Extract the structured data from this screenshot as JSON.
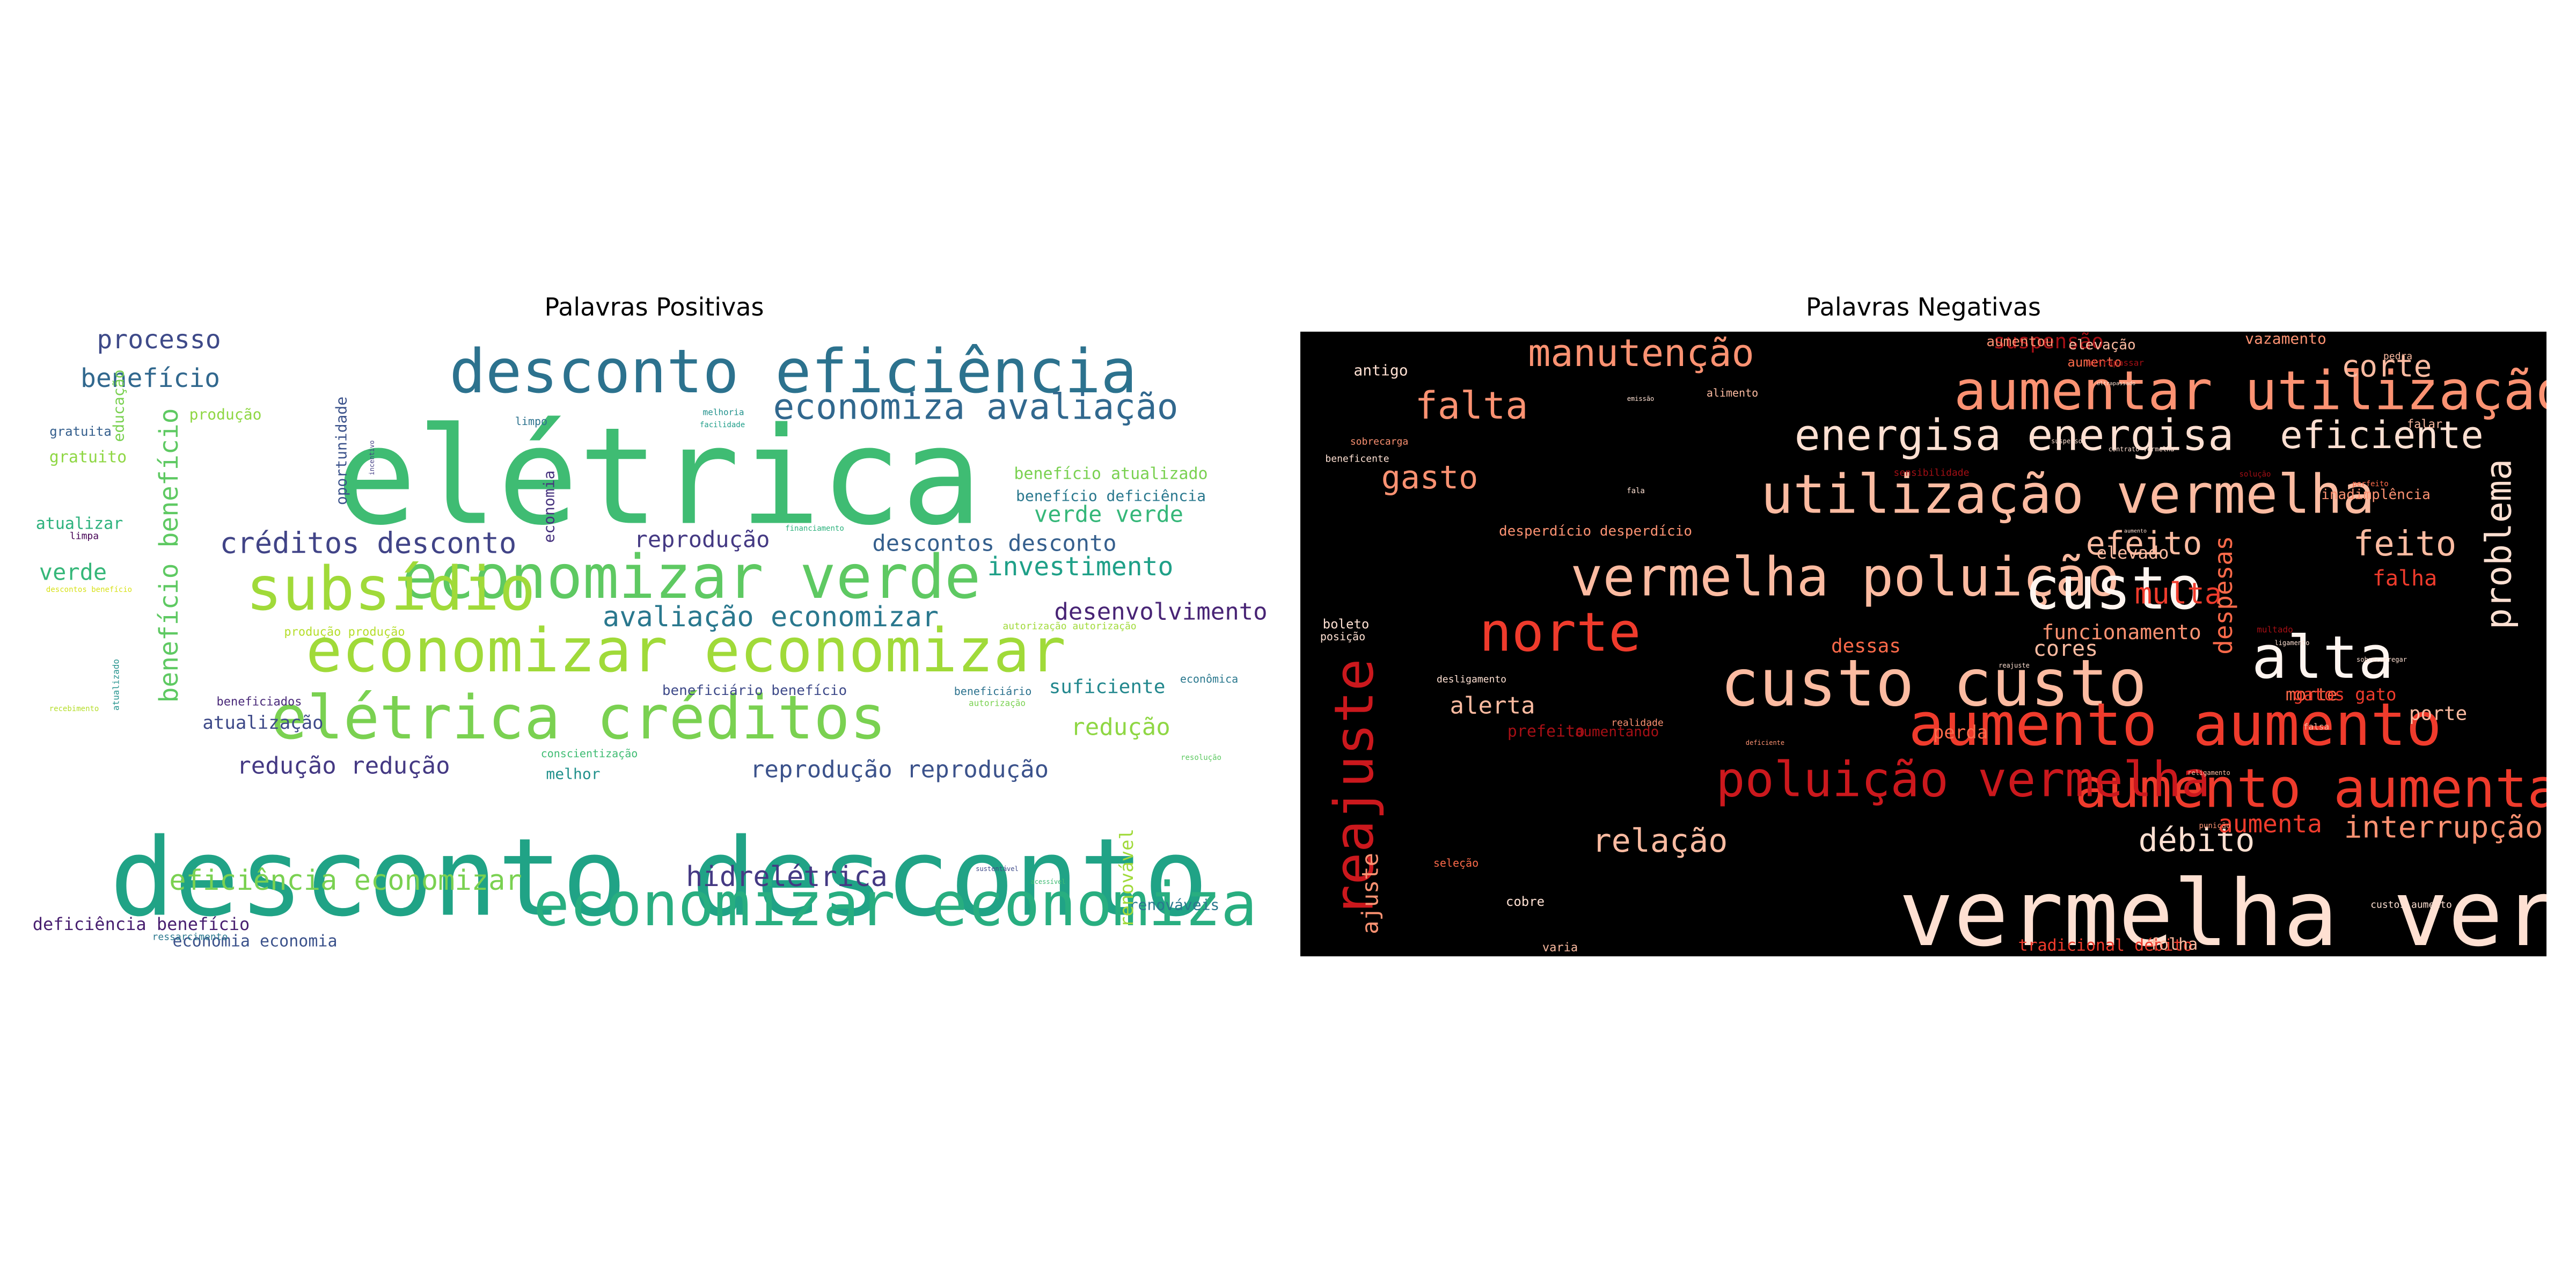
{
  "panels": [
    {
      "title": "Palavras Positivas",
      "background": "#ffffff",
      "words": [
        {
          "text": "elétrica",
          "color": "#3fbc73"
        },
        {
          "text": "desconto desconto",
          "color": "#20a386"
        },
        {
          "text": "desconto eficiência",
          "color": "#2c728e"
        },
        {
          "text": "economizar verde",
          "color": "#5ec962"
        },
        {
          "text": "subsídio",
          "color": "#a0da39"
        },
        {
          "text": "economizar economizar",
          "color": "#a0da39"
        },
        {
          "text": "elétrica créditos",
          "color": "#7ad151"
        },
        {
          "text": "economizar economiza",
          "color": "#28ae80"
        },
        {
          "text": "economiza avaliação",
          "color": "#31688e"
        },
        {
          "text": "processo",
          "color": "#3e4a89"
        },
        {
          "text": "benefício",
          "color": "#31688e"
        },
        {
          "text": "benefício benefício",
          "color": "#5ec962"
        },
        {
          "text": "créditos desconto",
          "color": "#414487"
        },
        {
          "text": "reprodução",
          "color": "#443983"
        },
        {
          "text": "avaliação economizar",
          "color": "#2a788e"
        },
        {
          "text": "desenvolvimento",
          "color": "#482475"
        },
        {
          "text": "investimento",
          "color": "#1fa088"
        },
        {
          "text": "descontos desconto",
          "color": "#355f8d"
        },
        {
          "text": "verde verde",
          "color": "#35b779"
        },
        {
          "text": "benefício atualizado",
          "color": "#7ad151"
        },
        {
          "text": "benefício deficiência",
          "color": "#2a788e"
        },
        {
          "text": "redução redução",
          "color": "#443983"
        },
        {
          "text": "reprodução reprodução",
          "color": "#3b528b"
        },
        {
          "text": "redução",
          "color": "#8fd744"
        },
        {
          "text": "atualização",
          "color": "#3e4a89"
        },
        {
          "text": "suficiente",
          "color": "#23888e"
        },
        {
          "text": "hidrelétrica",
          "color": "#443983"
        },
        {
          "text": "eficiência economizar",
          "color": "#7ad151"
        },
        {
          "text": "deficiência benefício",
          "color": "#481f70"
        },
        {
          "text": "economia economia",
          "color": "#3b528b"
        },
        {
          "text": "renováveis",
          "color": "#2a788e"
        },
        {
          "text": "renovável",
          "color": "#a0da39"
        },
        {
          "text": "produção",
          "color": "#8fd744"
        },
        {
          "text": "gratuita",
          "color": "#355f8d"
        },
        {
          "text": "gratuito",
          "color": "#8fd744"
        },
        {
          "text": "atualizar",
          "color": "#2db27d"
        },
        {
          "text": "verde",
          "color": "#35b779"
        },
        {
          "text": "limpa",
          "color": "#440154"
        },
        {
          "text": "educação",
          "color": "#7ad151"
        },
        {
          "text": "oportunidade",
          "color": "#3b528b"
        },
        {
          "text": "economia",
          "color": "#46327e"
        },
        {
          "text": "melhoria",
          "color": "#21918c"
        },
        {
          "text": "facilidade",
          "color": "#1f9e89"
        },
        {
          "text": "limpo",
          "color": "#2c728e"
        },
        {
          "text": "produção produção",
          "color": "#b5de2b"
        },
        {
          "text": "autorização autorização",
          "color": "#a0da39"
        },
        {
          "text": "beneficiário benefício",
          "color": "#3e4a89"
        },
        {
          "text": "beneficiário",
          "color": "#2c728e"
        },
        {
          "text": "econômica",
          "color": "#2a788e"
        },
        {
          "text": "beneficiados",
          "color": "#482878"
        },
        {
          "text": "melhor",
          "color": "#21918c"
        },
        {
          "text": "ressarcimento",
          "color": "#2a788e"
        },
        {
          "text": "conscientização",
          "color": "#3fbc73"
        },
        {
          "text": "autorização",
          "color": "#7ad151"
        },
        {
          "text": "resolução",
          "color": "#5ec962"
        },
        {
          "text": "recebimento",
          "color": "#b5de2b"
        },
        {
          "text": "atualizado",
          "color": "#21918c"
        },
        {
          "text": "financiamento",
          "color": "#2db27d"
        },
        {
          "text": "descontos benefício",
          "color": "#d8e219"
        },
        {
          "text": "incentivo",
          "color": "#433e85"
        },
        {
          "text": "beneficia",
          "color": "#2c728e"
        },
        {
          "text": "sustentável",
          "color": "#3e4a89"
        },
        {
          "text": "acessível",
          "color": "#3fbc73"
        }
      ]
    },
    {
      "title": "Palavras Negativas",
      "background": "#000000",
      "words": [
        {
          "text": "vermelha vermelha",
          "color": "#fee0d2"
        },
        {
          "text": "custo custo",
          "color": "#fcbba1"
        },
        {
          "text": "aumento aumento",
          "color": "#ef3b2c"
        },
        {
          "text": "aumentar utilização",
          "color": "#fc9272"
        },
        {
          "text": "utilização vermelha",
          "color": "#fcbba1"
        },
        {
          "text": "vermelha poluição",
          "color": "#fcbba1"
        },
        {
          "text": "custo",
          "color": "#fff5f0"
        },
        {
          "text": "aumento aumentar",
          "color": "#ef3b2c"
        },
        {
          "text": "poluição vermelha",
          "color": "#cb181d"
        },
        {
          "text": "energisa energisa",
          "color": "#fee0d2"
        },
        {
          "text": "reajuste",
          "color": "#cb181d"
        },
        {
          "text": "norte",
          "color": "#ef3b2c"
        },
        {
          "text": "alta",
          "color": "#fff5f0"
        },
        {
          "text": "manutenção",
          "color": "#fc9272"
        },
        {
          "text": "falta",
          "color": "#fc9272"
        },
        {
          "text": "eficiente",
          "color": "#fee0d2"
        },
        {
          "text": "gasto",
          "color": "#fc9272"
        },
        {
          "text": "feito",
          "color": "#fcbba1"
        },
        {
          "text": "problema",
          "color": "#fee0d2"
        },
        {
          "text": "efeito",
          "color": "#fcbba1"
        },
        {
          "text": "multa",
          "color": "#ef3b2c"
        },
        {
          "text": "corte",
          "color": "#fcbba1"
        },
        {
          "text": "despesas",
          "color": "#fb6a4a"
        },
        {
          "text": "falha",
          "color": "#ef3b2c"
        },
        {
          "text": "relação",
          "color": "#fcbba1"
        },
        {
          "text": "débito",
          "color": "#fee0d2"
        },
        {
          "text": "interrupção",
          "color": "#fc9272"
        },
        {
          "text": "aumenta",
          "color": "#ef3b2c"
        },
        {
          "text": "ajuste",
          "color": "#fc9272"
        },
        {
          "text": "alerta",
          "color": "#fcbba1"
        },
        {
          "text": "funcionamento",
          "color": "#fc9272"
        },
        {
          "text": "cores",
          "color": "#fcbba1"
        },
        {
          "text": "dessas",
          "color": "#fb6a4a"
        },
        {
          "text": "elevado",
          "color": "#fcbba1"
        },
        {
          "text": "porte",
          "color": "#fcbba1"
        },
        {
          "text": "morte",
          "color": "#fb6a4a"
        },
        {
          "text": "gatos gato",
          "color": "#ef3b2c"
        },
        {
          "text": "perda",
          "color": "#fb6a4a"
        },
        {
          "text": "prefeito",
          "color": "#a50f15"
        },
        {
          "text": "aumentando",
          "color": "#a50f15"
        },
        {
          "text": "tradicional débito",
          "color": "#ef3b2c"
        },
        {
          "text": "folha",
          "color": "#fcbba1"
        },
        {
          "text": "varia",
          "color": "#fcbba1"
        },
        {
          "text": "cobre",
          "color": "#fee0d2"
        },
        {
          "text": "aumento",
          "color": "#fb6a4a"
        },
        {
          "text": "vazamento",
          "color": "#fc9272"
        },
        {
          "text": "suspensão",
          "color": "#a50f15"
        },
        {
          "text": "aumentou",
          "color": "#fc9272"
        },
        {
          "text": "elevação",
          "color": "#fcbba1"
        },
        {
          "text": "antigo",
          "color": "#fee0d2"
        },
        {
          "text": "pedra",
          "color": "#fcbba1"
        },
        {
          "text": "falar",
          "color": "#fcbba1"
        },
        {
          "text": "inadimplência",
          "color": "#fc9272"
        },
        {
          "text": "desperdício desperdício",
          "color": "#fc9272"
        },
        {
          "text": "boleto",
          "color": "#fee0d2"
        },
        {
          "text": "posição",
          "color": "#fee0d2"
        },
        {
          "text": "beneficente",
          "color": "#fee0d2"
        },
        {
          "text": "sobrecarga",
          "color": "#fc9272"
        },
        {
          "text": "alimento",
          "color": "#fcbba1"
        },
        {
          "text": "ultrapassar",
          "color": "#a50f15"
        },
        {
          "text": "desligamento",
          "color": "#fee0d2"
        },
        {
          "text": "custos aumento",
          "color": "#fee0d2"
        },
        {
          "text": "seleção",
          "color": "#fb6a4a"
        },
        {
          "text": "emissão",
          "color": "#fee0d2"
        },
        {
          "text": "fala",
          "color": "#fee0d2"
        },
        {
          "text": "falsa",
          "color": "#fcbba1"
        },
        {
          "text": "punição",
          "color": "#fc9272"
        },
        {
          "text": "multado",
          "color": "#a50f15"
        },
        {
          "text": "reajuste",
          "color": "#fee0d2"
        },
        {
          "text": "realidade",
          "color": "#fc9272"
        },
        {
          "text": "sobrecarregar",
          "color": "#fee0d2"
        },
        {
          "text": "ultrapassado",
          "color": "#fee0d2"
        },
        {
          "text": "suspenso",
          "color": "#fee0d2"
        },
        {
          "text": "perfeito",
          "color": "#fb6a4a"
        },
        {
          "text": "deficiente",
          "color": "#fc9272"
        },
        {
          "text": "religamento",
          "color": "#fcbba1"
        },
        {
          "text": "contrato vermelha",
          "color": "#fee0d2"
        },
        {
          "text": "aumento",
          "color": "#fee0d2"
        },
        {
          "text": "solução",
          "color": "#a50f15"
        },
        {
          "text": "sensibilidade",
          "color": "#a50f15"
        },
        {
          "text": "ligamento",
          "color": "#fee0d2"
        }
      ]
    }
  ]
}
